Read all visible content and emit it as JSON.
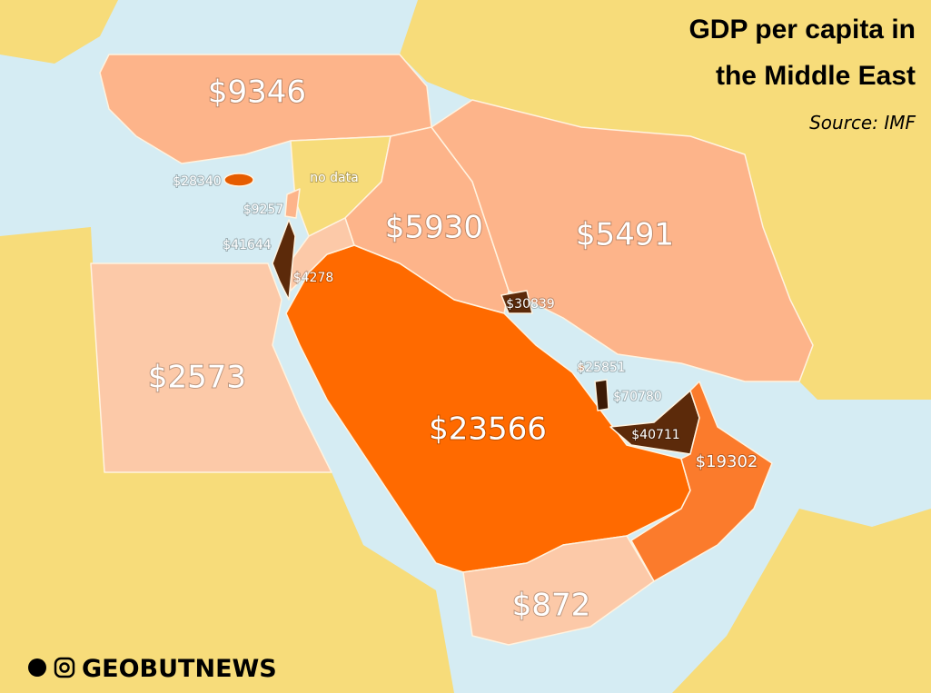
{
  "title_line1": "GDP per capita in",
  "title_line2": "the Middle East",
  "source": "Source: IMF",
  "handle": "GEOBUTNEWS",
  "regions": [
    {
      "label": "$9346",
      "color": "#fdb48a"
    },
    {
      "label": "no data",
      "color": "#f7dc7a"
    },
    {
      "label": "$5930",
      "color": "#fdb48a"
    },
    {
      "label": "$5491",
      "color": "#fdb48a"
    },
    {
      "label": "$23566",
      "color": "#ff6a00"
    },
    {
      "label": "$4278",
      "color": "#fcc9a8"
    },
    {
      "label": "$41644",
      "color": "#5c2a0a"
    },
    {
      "label": "$9257",
      "color": "#fdb48a"
    },
    {
      "label": "$28340",
      "color": "#e65c00"
    },
    {
      "label": "$2573",
      "color": "#fcc9a8"
    },
    {
      "label": "$30839",
      "color": "#5c2a0a"
    },
    {
      "label": "$70780",
      "color": "#3d1a05"
    },
    {
      "label": "$40711",
      "color": "#5c2a0a"
    },
    {
      "label": "$19302",
      "color": "#fb7b2c"
    },
    {
      "label": "$872",
      "color": "#fcc9a8"
    },
    {
      "label": "$25851",
      "color": "#fdb48a"
    }
  ]
}
